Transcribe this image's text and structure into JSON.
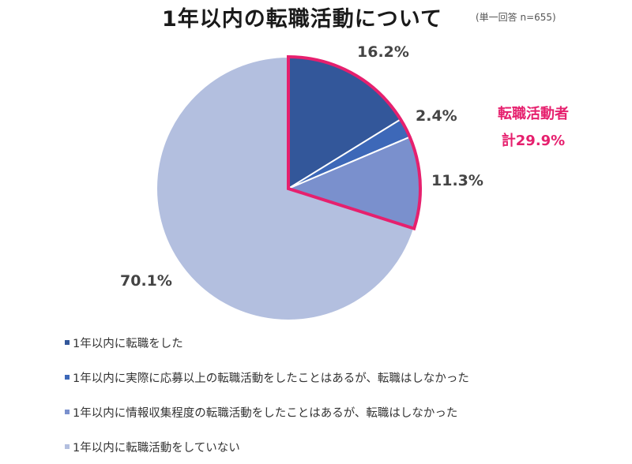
{
  "chart_data": {
    "type": "pie",
    "title": "1年以内の転職活動について",
    "subtitle": "(単一回答 n=655)",
    "categories": [
      "1年以内に転職をした",
      "1年以内に実際に応募以上の転職活動をしたことはあるが、転職はしなかった",
      "1年以内に情報収集程度の転職活動をしたことはあるが、転職はしなかった",
      "1年以内に転職活動をしていない"
    ],
    "values": [
      16.2,
      2.4,
      11.3,
      70.1
    ],
    "labels": [
      "16.2%",
      "2.4%",
      "11.3%",
      "70.1%"
    ],
    "colors": [
      "#33579a",
      "#3d68b8",
      "#7a90cd",
      "#b3bfdf"
    ],
    "start_angle": "12 o'clock",
    "direction": "clockwise",
    "highlight": {
      "slices": [
        0,
        1,
        2
      ],
      "outline_color": "#e6206e",
      "annotation_line1": "転職活動者",
      "annotation_line2": "計29.9%"
    },
    "legend_position": "bottom-left"
  }
}
